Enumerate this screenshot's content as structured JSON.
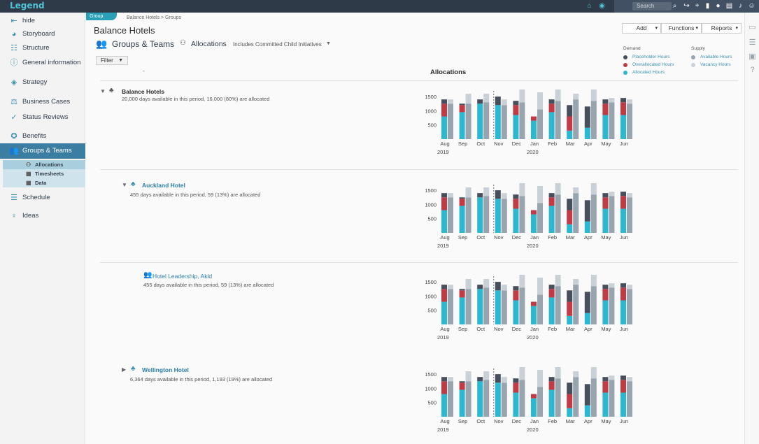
{
  "app": {
    "logo": "Legend"
  },
  "topbar": {
    "search_placeholder": "Search",
    "icons": [
      "home-icon",
      "globe-icon",
      "search-icon",
      "share-icon",
      "add-icon",
      "bookmark-icon",
      "comment-icon",
      "document-icon",
      "bell-icon",
      "user-icon"
    ]
  },
  "sidebar": {
    "items": [
      {
        "label": "hide",
        "icon": "collapse-icon"
      },
      {
        "label": "Storyboard",
        "icon": "palette-icon"
      },
      {
        "label": "Structure",
        "icon": "hierarchy-icon"
      },
      {
        "label": "General information",
        "icon": "info-icon"
      },
      {
        "label": "Strategy",
        "icon": "compass-icon"
      },
      {
        "label": "Business Cases",
        "icon": "scales-icon"
      },
      {
        "label": "Status Reviews",
        "icon": "check-icon"
      },
      {
        "label": "Benefits",
        "icon": "ribbon-icon"
      },
      {
        "label": "Groups & Teams",
        "icon": "people-icon"
      },
      {
        "label": "Schedule",
        "icon": "schedule-icon"
      },
      {
        "label": "Ideas",
        "icon": "lightbulb-icon"
      }
    ],
    "subitems": [
      {
        "label": "Allocations",
        "icon": "allocation-icon"
      },
      {
        "label": "Timesheets",
        "icon": "calendar-icon"
      },
      {
        "label": "Data",
        "icon": "grid-icon"
      }
    ]
  },
  "header": {
    "group_tab": "Group",
    "breadcrumb": "Balance Hotels > Groups",
    "title": "Balance Hotels",
    "view_title": "Groups & Teams",
    "sub_view": "Allocations",
    "include_text": "Includes Committed Child  Initiatives",
    "add_label": "Add",
    "functions_label": "Functions",
    "reports_label": "Reports",
    "filter_label": "Filter",
    "dash": "-",
    "allocations_header": "Allocations"
  },
  "legend": {
    "demand_title": "Demand",
    "supply_title": "Supply",
    "demand_items": [
      {
        "label": "Placeholder Hours",
        "color": "#474f5c"
      },
      {
        "label": "Overallocated Hours",
        "color": "#c13a44"
      },
      {
        "label": "Allocated Hours",
        "color": "#2bb8d0"
      }
    ],
    "supply_items": [
      {
        "label": "Available Hours",
        "color": "#98a4ae"
      },
      {
        "label": "Vacancy Hours",
        "color": "#c9d0d6"
      }
    ]
  },
  "rows": [
    {
      "name": "Balance Hotels",
      "desc": "20,000 days available in this period, 16,000 (80%) are allocated",
      "toggle": "▼"
    },
    {
      "name": "Auckland Hotel",
      "desc": "455 days available in this period, 59 (13%) are allocated",
      "toggle": "▼"
    },
    {
      "name": "Hotel Leadership, Akld",
      "desc": "455 days available in this period, 59 (13%) are allocated",
      "toggle": ""
    },
    {
      "name": "Wellington Hotel",
      "desc": "6,364 days available in this period, 1,193 (19%) are allocated",
      "toggle": "▶"
    }
  ],
  "chart_data": {
    "type": "bar",
    "categories": [
      "Aug",
      "Sep",
      "Oct",
      "Nov",
      "Dec",
      "Jan",
      "Feb",
      "Mar",
      "Apr",
      "May",
      "Jun"
    ],
    "year_labels": [
      {
        "label": "2019",
        "at": "Aug"
      },
      {
        "label": "2020",
        "at": "Jan"
      }
    ],
    "yticks": [
      500,
      1000,
      1500
    ],
    "ylim": [
      0,
      1700
    ],
    "current_period_marker": "Nov",
    "demand_series": {
      "allocated": [
        800,
        950,
        1250,
        1200,
        850,
        650,
        950,
        300,
        400,
        850,
        850
      ],
      "overallocated": [
        450,
        250,
        0,
        0,
        350,
        150,
        300,
        500,
        0,
        400,
        450
      ],
      "placeholder": [
        150,
        50,
        150,
        300,
        150,
        0,
        150,
        400,
        750,
        150,
        150
      ]
    },
    "supply_series": {
      "available": [
        1250,
        1250,
        1300,
        1200,
        1300,
        1050,
        1350,
        1400,
        1350,
        1300,
        1250
      ],
      "vacancy": [
        150,
        350,
        300,
        200,
        450,
        600,
        400,
        200,
        400,
        150,
        150
      ]
    }
  }
}
